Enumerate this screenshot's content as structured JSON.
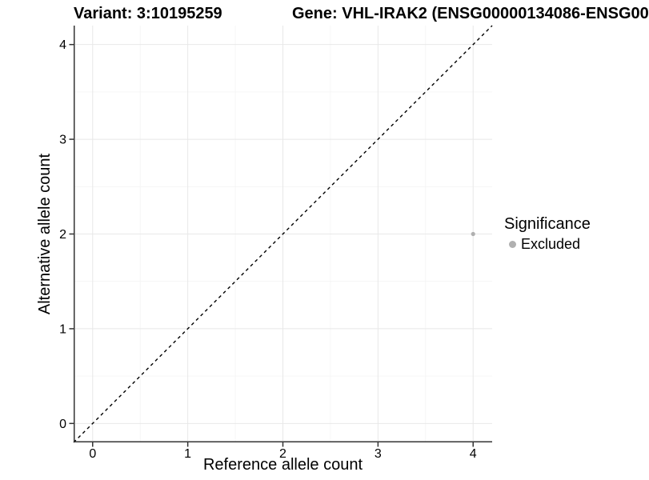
{
  "chart_data": {
    "type": "scatter",
    "title_left": "Variant: 3:10195259",
    "title_right": "Gene: VHL-IRAK2 (ENSG00000134086-ENSG00",
    "xlabel": "Reference allele count",
    "ylabel": "Alternative allele count",
    "xlim": [
      -0.2,
      4.2
    ],
    "ylim": [
      -0.2,
      4.2
    ],
    "xticks": [
      0,
      1,
      2,
      3,
      4
    ],
    "yticks": [
      0,
      1,
      2,
      3,
      4
    ],
    "xticks_minor": [
      0.5,
      1.5,
      2.5,
      3.5
    ],
    "yticks_minor": [
      0.5,
      1.5,
      2.5,
      3.5
    ],
    "grid": "major+minor",
    "reference_line": {
      "type": "identity",
      "slope": 1,
      "intercept": 0,
      "style": "dashed",
      "color": "#000000"
    },
    "series": [
      {
        "name": "Excluded",
        "color": "#b0b0b0",
        "points": [
          [
            4,
            2
          ]
        ],
        "point_radius": 2.6
      }
    ],
    "legend": {
      "title": "Significance",
      "position": "right",
      "items": [
        {
          "label": "Excluded",
          "color": "#b0b0b0"
        }
      ]
    },
    "colors": {
      "grid_major": "#e8e8e8",
      "grid_minor": "#f4f4f4",
      "axis_line": "#333333",
      "tick_text": "#000000"
    }
  }
}
